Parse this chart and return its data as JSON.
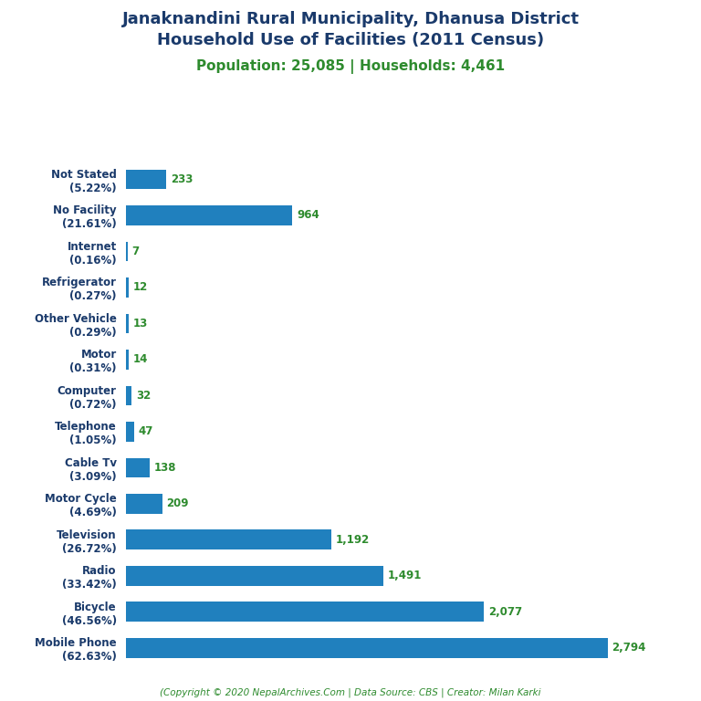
{
  "title_line1": "Janaknandini Rural Municipality, Dhanusa District",
  "title_line2": "Household Use of Facilities (2011 Census)",
  "subtitle": "Population: 25,085 | Households: 4,461",
  "title_color": "#1a3a6b",
  "subtitle_color": "#2e8b2e",
  "categories": [
    "Not Stated\n(5.22%)",
    "No Facility\n(21.61%)",
    "Internet\n(0.16%)",
    "Refrigerator\n(0.27%)",
    "Other Vehicle\n(0.29%)",
    "Motor\n(0.31%)",
    "Computer\n(0.72%)",
    "Telephone\n(1.05%)",
    "Cable Tv\n(3.09%)",
    "Motor Cycle\n(4.69%)",
    "Television\n(26.72%)",
    "Radio\n(33.42%)",
    "Bicycle\n(46.56%)",
    "Mobile Phone\n(62.63%)"
  ],
  "values": [
    233,
    964,
    7,
    12,
    13,
    14,
    32,
    47,
    138,
    209,
    1192,
    1491,
    2077,
    2794
  ],
  "value_labels": [
    "233",
    "964",
    "7",
    "12",
    "13",
    "14",
    "32",
    "47",
    "138",
    "209",
    "1,192",
    "1,491",
    "2,077",
    "2,794"
  ],
  "bar_color": "#2080be",
  "value_color": "#2e8b2e",
  "label_color": "#1a3a6b",
  "footer": "(Copyright © 2020 NepalArchives.Com | Data Source: CBS | Creator: Milan Karki",
  "footer_color": "#2e8b2e",
  "background_color": "#ffffff",
  "xlim": [
    0,
    3050
  ],
  "title_fontsize": 13,
  "subtitle_fontsize": 11,
  "label_fontsize": 8.5,
  "value_fontsize": 8.5
}
